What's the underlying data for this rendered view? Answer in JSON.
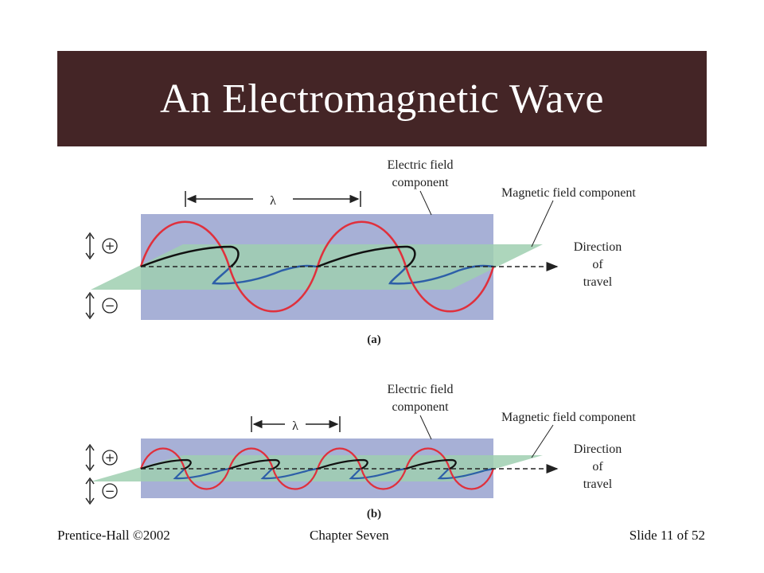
{
  "slide": {
    "title": "An Electromagnetic Wave",
    "footer_left": "Prentice-Hall ©2002",
    "footer_center": "Chapter Seven",
    "footer_right": "Slide 11 of 52"
  },
  "panels": [
    {
      "id": "a",
      "caption": "(a)",
      "wavelength_symbol": "λ",
      "electric_label_line1": "Electric field",
      "electric_label_line2": "component",
      "magnetic_label": "Magnetic field component",
      "direction_line1": "Direction",
      "direction_line2": "of",
      "direction_line3": "travel",
      "plus": "+",
      "minus": "−",
      "cycles": 2
    },
    {
      "id": "b",
      "caption": "(b)",
      "wavelength_symbol": "λ",
      "electric_label_line1": "Electric field",
      "electric_label_line2": "component",
      "magnetic_label": "Magnetic field component",
      "direction_line1": "Direction",
      "direction_line2": "of",
      "direction_line3": "travel",
      "plus": "+",
      "minus": "−",
      "cycles": 4
    }
  ],
  "colors": {
    "title_bg": "#442526",
    "electric_plane": "#a7b0d6",
    "magnetic_plane": "#9fcfb0",
    "electric_wave": "#e0303c",
    "magnetic_wave_front": "#111111",
    "magnetic_wave_back": "#2d5fa8"
  }
}
